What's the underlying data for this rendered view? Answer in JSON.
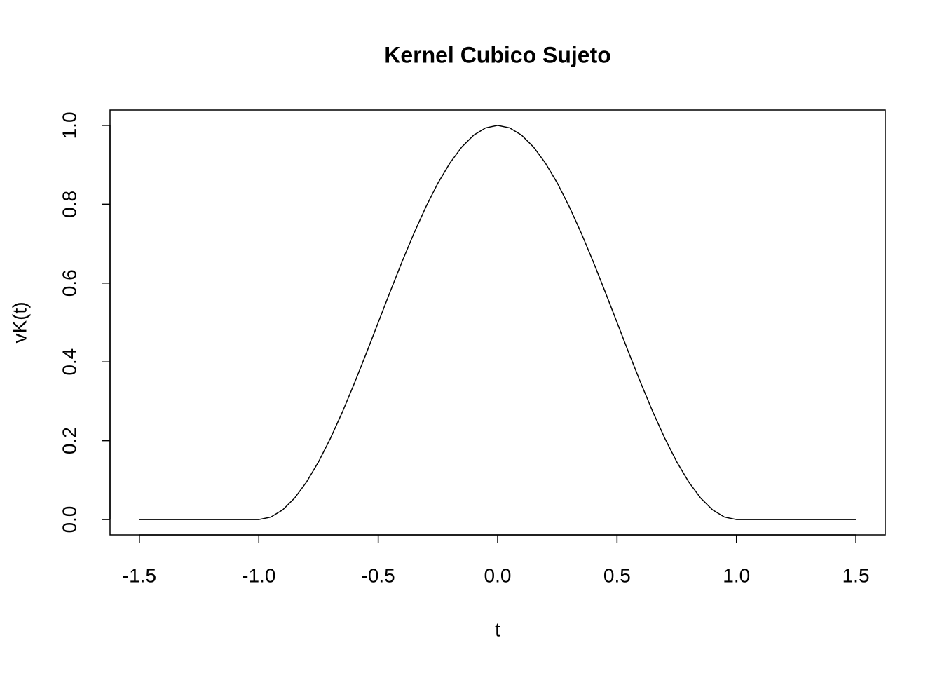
{
  "chart_data": {
    "type": "line",
    "title": "Kernel Cubico Sujeto",
    "x_label": "t",
    "y_label": "vK(t)",
    "x": [
      -1.5,
      -1.45,
      -1.4,
      -1.35,
      -1.3,
      -1.25,
      -1.2,
      -1.15,
      -1.1,
      -1.05,
      -1.0,
      -0.95,
      -0.9,
      -0.85,
      -0.8,
      -0.75,
      -0.7,
      -0.65,
      -0.6,
      -0.55,
      -0.5,
      -0.45,
      -0.4,
      -0.35,
      -0.3,
      -0.25,
      -0.2,
      -0.15,
      -0.1,
      -0.05,
      0,
      0.05,
      0.1,
      0.15,
      0.2,
      0.25,
      0.3,
      0.35,
      0.4,
      0.45,
      0.5,
      0.55,
      0.6,
      0.65,
      0.7,
      0.75,
      0.8,
      0.85,
      0.9,
      0.95,
      1.0,
      1.05,
      1.1,
      1.15,
      1.2,
      1.25,
      1.3,
      1.35,
      1.4,
      1.45,
      1.5
    ],
    "values": [
      0,
      0,
      0,
      0,
      0,
      0,
      0,
      0,
      0,
      0,
      0,
      0.0062,
      0.0245,
      0.0545,
      0.0955,
      0.1464,
      0.2061,
      0.273,
      0.3455,
      0.4218,
      0.5,
      0.5782,
      0.6545,
      0.727,
      0.7939,
      0.8536,
      0.9045,
      0.9455,
      0.9755,
      0.9938,
      1,
      0.9938,
      0.9755,
      0.9455,
      0.9045,
      0.8536,
      0.7939,
      0.727,
      0.6545,
      0.5782,
      0.5,
      0.4218,
      0.3455,
      0.273,
      0.2061,
      0.1464,
      0.0955,
      0.0545,
      0.0245,
      0.0062,
      0,
      0,
      0,
      0,
      0,
      0,
      0,
      0,
      0,
      0,
      0
    ],
    "color": "#000000",
    "xlim": [
      -1.623,
      1.623
    ],
    "xticks": [
      {
        "value": -1.5,
        "label": "-1.5"
      },
      {
        "value": -1.0,
        "label": "-1.0"
      },
      {
        "value": -0.5,
        "label": "-0.5"
      },
      {
        "value": 0,
        "label": "0.0"
      },
      {
        "value": 0.5,
        "label": "0.5"
      },
      {
        "value": 1.0,
        "label": "1.0"
      },
      {
        "value": 1.5,
        "label": "1.5"
      }
    ],
    "ylim": [
      -0.039,
      1.039
    ],
    "yticks": [
      {
        "value": 0,
        "label": "0.0"
      },
      {
        "value": 0.2,
        "label": "0.2"
      },
      {
        "value": 0.4,
        "label": "0.4"
      },
      {
        "value": 0.6,
        "label": "0.6"
      },
      {
        "value": 0.8,
        "label": "0.8"
      },
      {
        "value": 1.0,
        "label": "1.0"
      }
    ]
  }
}
